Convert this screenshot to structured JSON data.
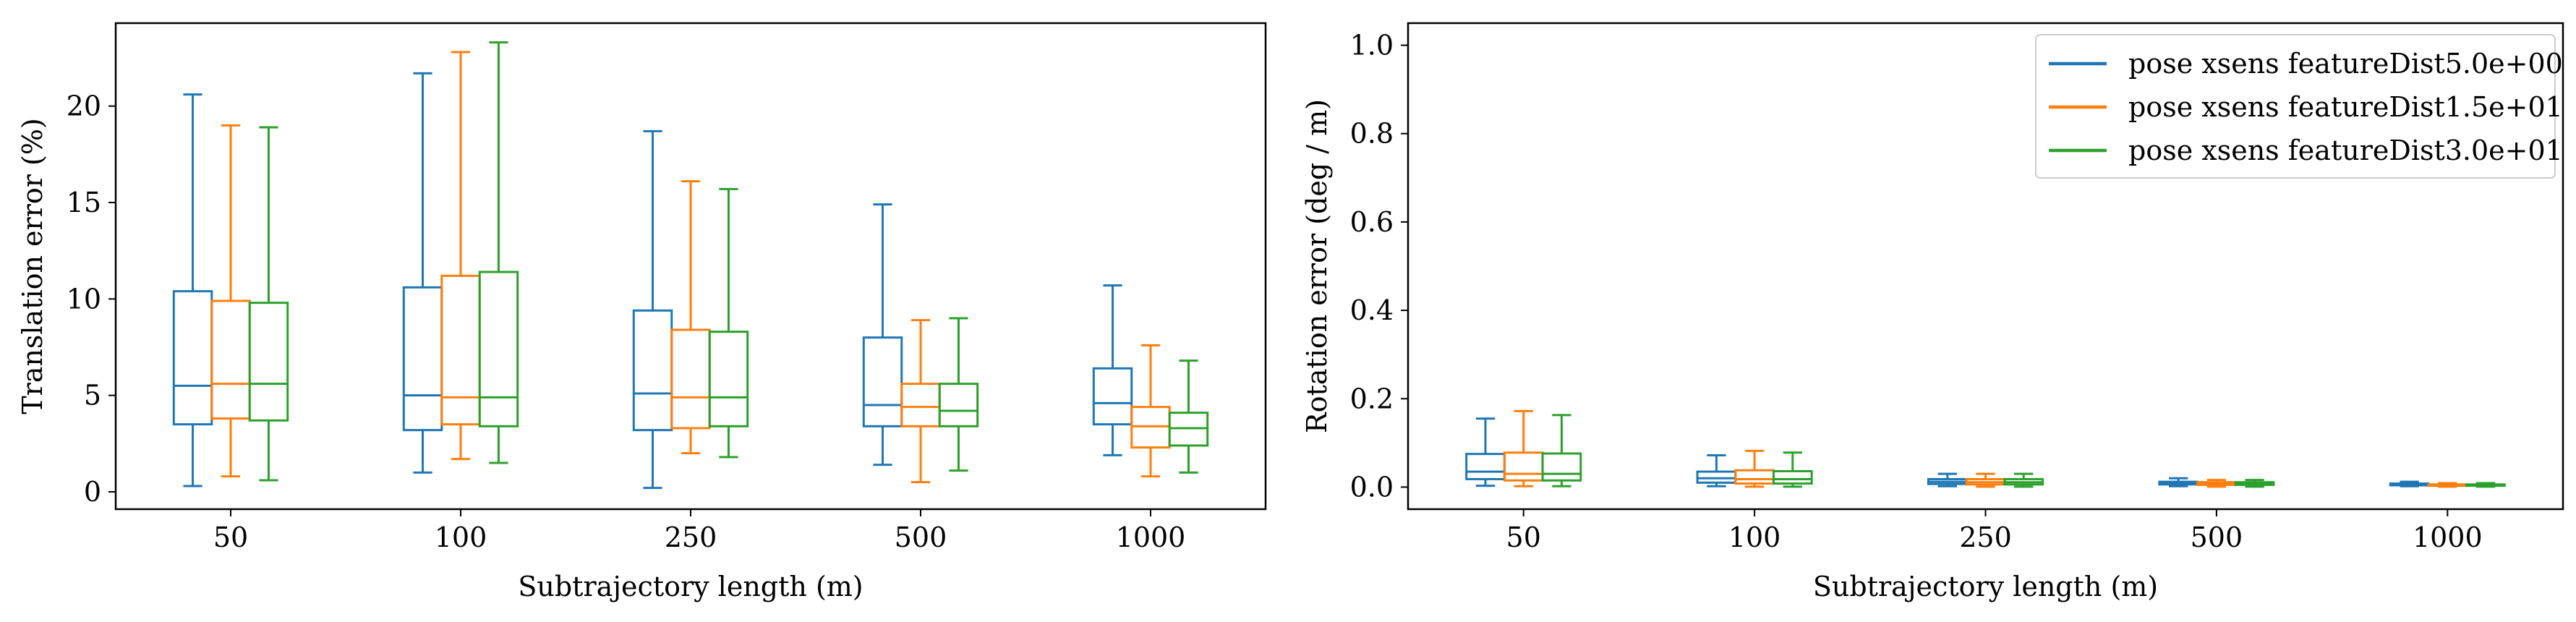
{
  "chart_data": [
    {
      "type": "box",
      "xlabel": "Subtrajectory length (m)",
      "ylabel": "Translation error (%)",
      "categories": [
        "50",
        "100",
        "250",
        "500",
        "1000"
      ],
      "ylim": [
        -0.9,
        24.3
      ],
      "yticks": [
        0,
        5,
        10,
        15,
        20
      ],
      "ytick_labels": [
        "0",
        "5",
        "10",
        "15",
        "20"
      ],
      "grid": false,
      "legend": null,
      "series": [
        {
          "color": "#1f77b4",
          "boxes": [
            {
              "whislo": 0.3,
              "q1": 3.5,
              "med": 5.5,
              "q3": 10.4,
              "whishi": 20.6
            },
            {
              "whislo": 1.0,
              "q1": 3.2,
              "med": 5.0,
              "q3": 10.6,
              "whishi": 21.7
            },
            {
              "whislo": 0.2,
              "q1": 3.2,
              "med": 5.1,
              "q3": 9.4,
              "whishi": 18.7
            },
            {
              "whislo": 1.4,
              "q1": 3.4,
              "med": 4.5,
              "q3": 8.0,
              "whishi": 14.9
            },
            {
              "whislo": 1.9,
              "q1": 3.5,
              "med": 4.6,
              "q3": 6.4,
              "whishi": 10.7
            }
          ]
        },
        {
          "color": "#ff7f0e",
          "boxes": [
            {
              "whislo": 0.8,
              "q1": 3.8,
              "med": 5.6,
              "q3": 9.9,
              "whishi": 19.0
            },
            {
              "whislo": 1.7,
              "q1": 3.5,
              "med": 4.9,
              "q3": 11.2,
              "whishi": 22.8
            },
            {
              "whislo": 2.0,
              "q1": 3.3,
              "med": 4.9,
              "q3": 8.4,
              "whishi": 16.1
            },
            {
              "whislo": 0.5,
              "q1": 3.4,
              "med": 4.4,
              "q3": 5.6,
              "whishi": 8.9
            },
            {
              "whislo": 0.8,
              "q1": 2.3,
              "med": 3.4,
              "q3": 4.4,
              "whishi": 7.6
            }
          ]
        },
        {
          "color": "#2ca02c",
          "boxes": [
            {
              "whislo": 0.6,
              "q1": 3.7,
              "med": 5.6,
              "q3": 9.8,
              "whishi": 18.9
            },
            {
              "whislo": 1.5,
              "q1": 3.4,
              "med": 4.9,
              "q3": 11.4,
              "whishi": 23.3
            },
            {
              "whislo": 1.8,
              "q1": 3.4,
              "med": 4.9,
              "q3": 8.3,
              "whishi": 15.7
            },
            {
              "whislo": 1.1,
              "q1": 3.4,
              "med": 4.2,
              "q3": 5.6,
              "whishi": 9.0
            },
            {
              "whislo": 1.0,
              "q1": 2.4,
              "med": 3.3,
              "q3": 4.1,
              "whishi": 6.8
            }
          ]
        }
      ]
    },
    {
      "type": "box",
      "xlabel": "Subtrajectory length (m)",
      "ylabel": "Rotation error (deg / m)",
      "categories": [
        "50",
        "100",
        "250",
        "500",
        "1000"
      ],
      "ylim": [
        -0.05,
        1.05
      ],
      "yticks": [
        0.0,
        0.2,
        0.4,
        0.6,
        0.8,
        1.0
      ],
      "ytick_labels": [
        "0.0",
        "0.2",
        "0.4",
        "0.6",
        "0.8",
        "1.0"
      ],
      "grid": false,
      "legend": "top-right",
      "series": [
        {
          "name": "pose xsens featureDist5.0e+00",
          "color": "#1f77b4",
          "boxes": [
            {
              "whislo": 0.003,
              "q1": 0.018,
              "med": 0.035,
              "q3": 0.075,
              "whishi": 0.155
            },
            {
              "whislo": 0.002,
              "q1": 0.01,
              "med": 0.02,
              "q3": 0.035,
              "whishi": 0.072
            },
            {
              "whislo": 0.002,
              "q1": 0.007,
              "med": 0.012,
              "q3": 0.018,
              "whishi": 0.03
            },
            {
              "whislo": 0.002,
              "q1": 0.006,
              "med": 0.009,
              "q3": 0.012,
              "whishi": 0.02
            },
            {
              "whislo": 0.002,
              "q1": 0.004,
              "med": 0.006,
              "q3": 0.008,
              "whishi": 0.012
            }
          ]
        },
        {
          "name": "pose xsens featureDist1.5e+01",
          "color": "#ff7f0e",
          "boxes": [
            {
              "whislo": 0.002,
              "q1": 0.015,
              "med": 0.03,
              "q3": 0.078,
              "whishi": 0.172
            },
            {
              "whislo": 0.001,
              "q1": 0.008,
              "med": 0.018,
              "q3": 0.038,
              "whishi": 0.082
            },
            {
              "whislo": 0.001,
              "q1": 0.006,
              "med": 0.011,
              "q3": 0.018,
              "whishi": 0.03
            },
            {
              "whislo": 0.001,
              "q1": 0.005,
              "med": 0.008,
              "q3": 0.011,
              "whishi": 0.016
            },
            {
              "whislo": 0.001,
              "q1": 0.003,
              "med": 0.005,
              "q3": 0.006,
              "whishi": 0.009
            }
          ]
        },
        {
          "name": "pose xsens featureDist3.0e+01",
          "color": "#2ca02c",
          "boxes": [
            {
              "whislo": 0.002,
              "q1": 0.015,
              "med": 0.03,
              "q3": 0.076,
              "whishi": 0.163
            },
            {
              "whislo": 0.001,
              "q1": 0.008,
              "med": 0.018,
              "q3": 0.036,
              "whishi": 0.078
            },
            {
              "whislo": 0.001,
              "q1": 0.006,
              "med": 0.011,
              "q3": 0.018,
              "whishi": 0.03
            },
            {
              "whislo": 0.001,
              "q1": 0.005,
              "med": 0.008,
              "q3": 0.011,
              "whishi": 0.016
            },
            {
              "whislo": 0.001,
              "q1": 0.003,
              "med": 0.005,
              "q3": 0.006,
              "whishi": 0.009
            }
          ]
        }
      ]
    }
  ]
}
